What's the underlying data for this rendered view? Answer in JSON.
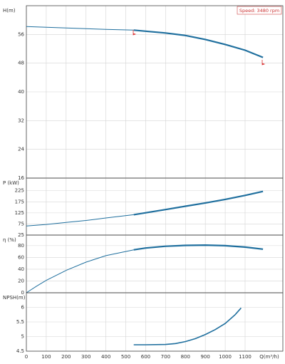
{
  "chart_data": [
    {
      "type": "line",
      "y_label": "H(m)",
      "annotation": "Speed: 3480 rpm",
      "ylim": [
        16,
        64
      ],
      "yticks": [
        16,
        24,
        32,
        40,
        48,
        56
      ],
      "series": [
        {
          "color": "#1f6f9e",
          "width": 1,
          "x": [
            0,
            100,
            200,
            300,
            400,
            540
          ],
          "values": [
            58.2,
            58.0,
            57.8,
            57.6,
            57.4,
            57.2
          ]
        },
        {
          "color": "#1f6f9e",
          "width": 2.2,
          "x": [
            540,
            600,
            700,
            800,
            900,
            1000,
            1100,
            1190
          ],
          "values": [
            57.2,
            56.9,
            56.4,
            55.7,
            54.6,
            53.2,
            51.6,
            49.6
          ]
        }
      ]
    },
    {
      "type": "line",
      "y_label": "P (kW)",
      "ylim": [
        25,
        282
      ],
      "yticks": [
        25,
        75,
        125,
        175,
        225
      ],
      "series": [
        {
          "color": "#1f6f9e",
          "width": 1,
          "x": [
            0,
            100,
            200,
            300,
            400,
            540
          ],
          "values": [
            66,
            73,
            82,
            91,
            102,
            117
          ]
        },
        {
          "color": "#1f6f9e",
          "width": 2.2,
          "x": [
            540,
            700,
            800,
            900,
            1000,
            1100,
            1190
          ],
          "values": [
            117,
            140,
            155,
            170,
            186,
            204,
            222
          ]
        }
      ]
    },
    {
      "type": "line",
      "y_label": "η (%)",
      "ylim": [
        0,
        98
      ],
      "yticks": [
        0,
        20,
        40,
        60,
        80
      ],
      "series": [
        {
          "color": "#1f6f9e",
          "width": 1,
          "x": [
            0,
            50,
            100,
            200,
            300,
            400,
            540
          ],
          "values": [
            0,
            11,
            21,
            38,
            52,
            63,
            73
          ]
        },
        {
          "color": "#1f6f9e",
          "width": 2.2,
          "x": [
            540,
            600,
            700,
            800,
            900,
            1000,
            1100,
            1190
          ],
          "values": [
            73,
            76,
            79,
            80.5,
            81,
            80,
            77.5,
            74
          ]
        }
      ]
    },
    {
      "type": "line",
      "y_label": "NPSH(m)",
      "x_label": "Q(m³/h)",
      "xlim": [
        0,
        1290
      ],
      "xticks": [
        0,
        100,
        200,
        300,
        400,
        500,
        600,
        700,
        800,
        900,
        1000,
        1100
      ],
      "ylim": [
        4.5,
        6.5
      ],
      "yticks": [
        4.5,
        5,
        5.5,
        6
      ],
      "series": [
        {
          "color": "#1f6f9e",
          "width": 1.6,
          "x": [
            540,
            600,
            700,
            750,
            800,
            850,
            900,
            950,
            1000,
            1050,
            1080
          ],
          "values": [
            4.72,
            4.72,
            4.73,
            4.76,
            4.83,
            4.93,
            5.07,
            5.24,
            5.45,
            5.75,
            5.98
          ]
        }
      ]
    }
  ]
}
